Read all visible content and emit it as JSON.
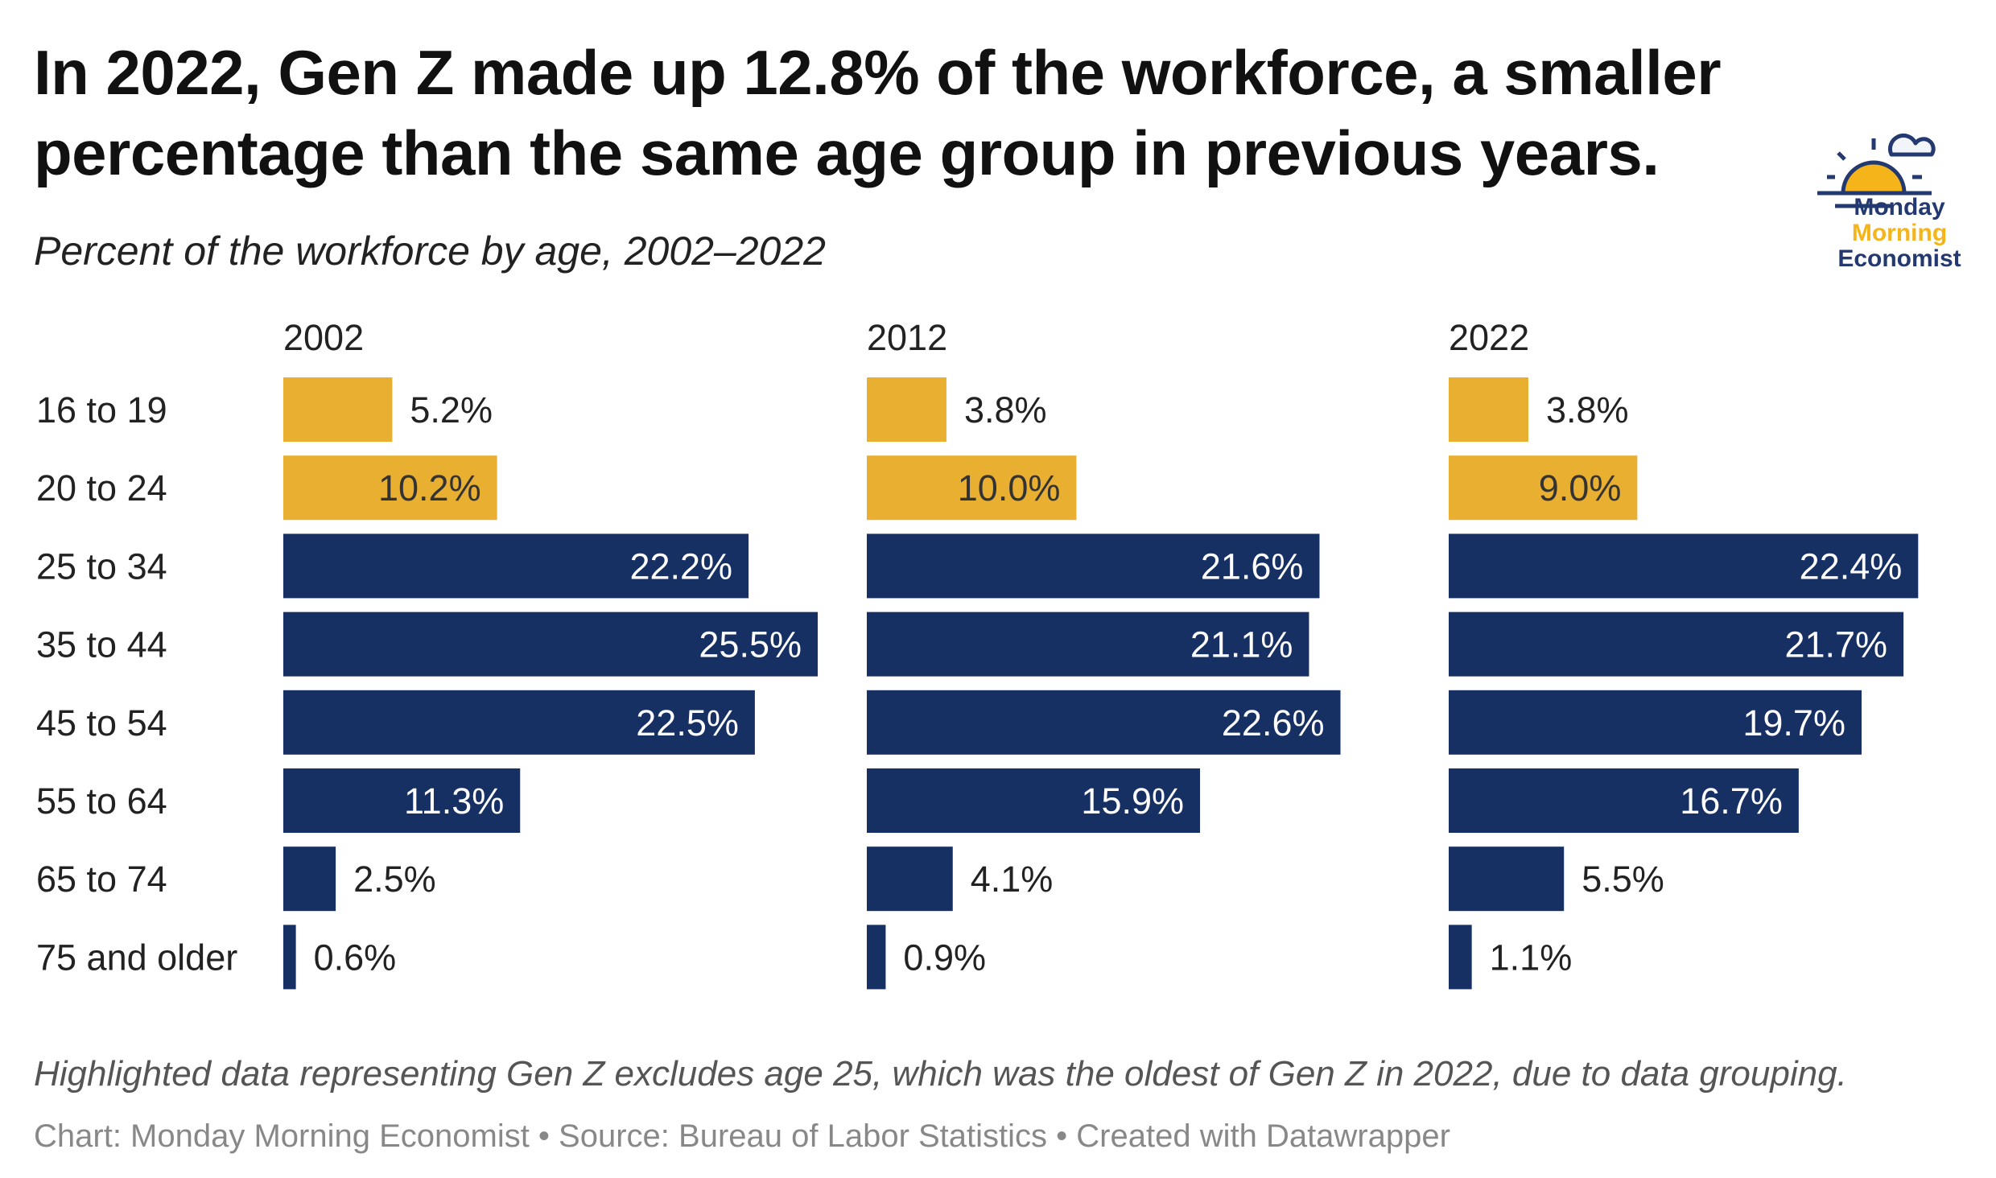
{
  "title_line1": "In 2022, Gen Z made up 12.8% of the workforce, a smaller",
  "title_line2": "percentage than the same age group in previous years.",
  "subtitle": "Percent of the workforce by age, 2002–2022",
  "logo": {
    "line1": "Monday",
    "line2": "Morning",
    "line3": "Economist"
  },
  "colors": {
    "gen_z": "#E8AF31",
    "other": "#173063",
    "logo_navy": "#23396F",
    "logo_gold": "#F4B41A"
  },
  "chart_data": {
    "type": "bar",
    "orientation": "horizontal",
    "categories": [
      "16 to 19",
      "20 to 24",
      "25 to 34",
      "35 to 44",
      "45 to 54",
      "55 to 64",
      "65 to 74",
      "75 and older"
    ],
    "highlighted_categories": [
      "16 to 19",
      "20 to 24"
    ],
    "series": [
      {
        "name": "2002",
        "values": [
          5.2,
          10.2,
          22.2,
          25.5,
          22.5,
          11.3,
          2.5,
          0.6
        ]
      },
      {
        "name": "2012",
        "values": [
          3.8,
          10.0,
          21.6,
          21.1,
          22.6,
          15.9,
          4.1,
          0.9
        ]
      },
      {
        "name": "2022",
        "values": [
          3.8,
          9.0,
          22.4,
          21.7,
          19.7,
          16.7,
          5.5,
          1.1
        ]
      }
    ],
    "value_suffix": "%",
    "xlim": [
      0,
      25.5
    ],
    "grid": false
  },
  "note": "Highlighted data representing Gen Z excludes age 25, which was the oldest of Gen Z in 2022, due to data grouping.",
  "credit": "Chart: Monday Morning Economist • Source: Bureau of Labor Statistics • Created with Datawrapper"
}
